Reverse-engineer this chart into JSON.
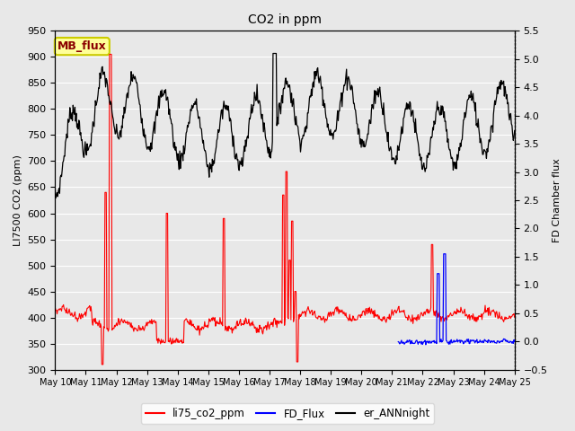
{
  "title": "CO2 in ppm",
  "ylabel_left": "LI7500 CO2 (ppm)",
  "ylabel_right": "FD Chamber flux",
  "ylim_left": [
    300,
    950
  ],
  "ylim_right": [
    -0.5,
    5.5
  ],
  "yticks_left": [
    300,
    350,
    400,
    450,
    500,
    550,
    600,
    650,
    700,
    750,
    800,
    850,
    900,
    950
  ],
  "yticks_right": [
    -0.5,
    0.0,
    0.5,
    1.0,
    1.5,
    2.0,
    2.5,
    3.0,
    3.5,
    4.0,
    4.5,
    5.0,
    5.5
  ],
  "x_tick_labels": [
    "May 10",
    "May 11",
    "May 12",
    "May 13",
    "May 14",
    "May 15",
    "May 16",
    "May 17",
    "May 18",
    "May 19",
    "May 20",
    "May 21",
    "May 22",
    "May 23",
    "May 24",
    "May 25"
  ],
  "background_color": "#e8e8e8",
  "grid_color": "white",
  "legend_entries": [
    "li75_co2_ppm",
    "FD_Flux",
    "er_ANNnight"
  ],
  "annotation_text": "MB_flux",
  "annotation_color": "#8B0000",
  "annotation_bg": "#FFFF99",
  "annotation_border": "#CCCC00"
}
